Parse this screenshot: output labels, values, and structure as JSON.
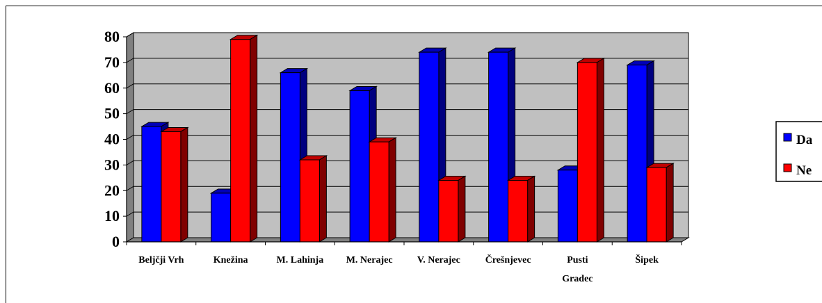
{
  "chart_data": {
    "type": "bar",
    "categories": [
      "Beljčji Vrh",
      "Knežina",
      "M. Lahinja",
      "M. Nerajec",
      "V. Nerajec",
      "Črešnjevec",
      "Pusti Gradec",
      "Šipek"
    ],
    "category_lines": [
      [
        "Beljčji Vrh"
      ],
      [
        "Knežina"
      ],
      [
        "M. Lahinja"
      ],
      [
        "M. Nerajec"
      ],
      [
        "V. Nerajec"
      ],
      [
        "Črešnjevec"
      ],
      [
        "Pusti",
        "Gradec"
      ],
      [
        "Šipek"
      ]
    ],
    "series": [
      {
        "name": "Da",
        "values": [
          45,
          19,
          66,
          59,
          74,
          74,
          28,
          69
        ]
      },
      {
        "name": "Ne",
        "values": [
          43,
          79,
          32,
          39,
          24,
          24,
          70,
          29
        ]
      }
    ],
    "yticks": [
      "0",
      "10",
      "20",
      "30",
      "40",
      "50",
      "60",
      "70",
      "80"
    ],
    "ylim": [
      0,
      80
    ],
    "grid": true,
    "legend_position": "right",
    "colors": {
      "Da": "#0000ff",
      "Da_side": "#000080",
      "Da_top": "#0000b8",
      "Ne": "#ff0000",
      "Ne_side": "#800000",
      "Ne_top": "#c00000",
      "wall": "#c0c0c0",
      "floor": "#808080",
      "grid": "#000000"
    }
  }
}
